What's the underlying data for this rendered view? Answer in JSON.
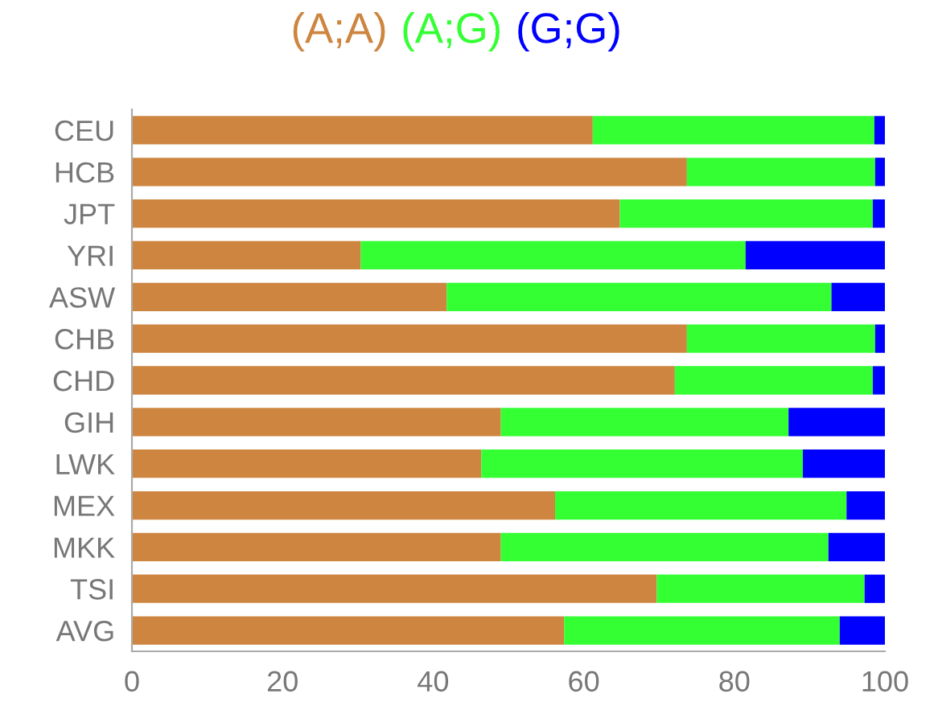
{
  "chart_data": {
    "type": "bar",
    "orientation": "horizontal",
    "stacked": true,
    "legend": "top",
    "categories": [
      "CEU",
      "HCB",
      "JPT",
      "YRI",
      "ASW",
      "CHB",
      "CHD",
      "GIH",
      "LWK",
      "MEX",
      "MKK",
      "TSI",
      "AVG"
    ],
    "series": [
      {
        "name": "(A;A)",
        "color": "#cd853f",
        "values": [
          61.2,
          73.7,
          64.8,
          30.4,
          41.8,
          73.7,
          72.1,
          49.0,
          46.4,
          56.2,
          49.0,
          69.7,
          57.4
        ]
      },
      {
        "name": "(A;G)",
        "color": "#33ff33",
        "values": [
          37.4,
          25.0,
          33.6,
          51.1,
          51.1,
          25.0,
          26.3,
          38.2,
          42.7,
          38.7,
          43.5,
          27.6,
          36.6
        ]
      },
      {
        "name": "(G;G)",
        "color": "#0000ff",
        "values": [
          1.4,
          1.3,
          1.6,
          18.5,
          7.1,
          1.3,
          1.6,
          12.8,
          10.9,
          5.1,
          7.5,
          2.7,
          6.0
        ]
      }
    ],
    "xlim": [
      0,
      100
    ],
    "xticks": [
      0,
      20,
      40,
      60,
      80,
      100
    ],
    "grid": false
  }
}
